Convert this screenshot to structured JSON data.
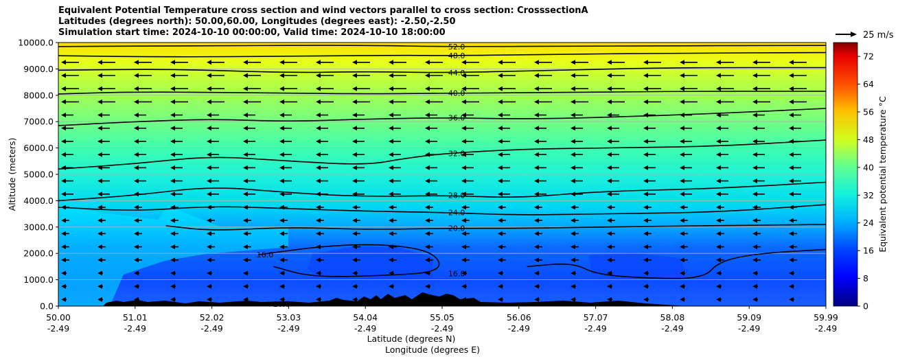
{
  "title_lines": [
    "Equivalent Potential Temperature cross section and wind vectors parallel to cross section: CrosssectionA",
    "Latitudes (degrees north): 50.00,60.00, Longitudes (degrees east): -2.50,-2.50",
    "Simulation start time: 2024-10-10 00:00:00, Valid time: 2024-10-10 18:00:00"
  ],
  "chart_data": {
    "type": "heatmap",
    "xlabel": "Latitude (degrees N)",
    "xlabel2": "Longitude (degrees E)",
    "ylabel": "Altitude (meters)",
    "colorbar_label": "Equivalent potential temperature °C",
    "x_ticks": [
      {
        "lat": "50.00",
        "lon": "-2.49"
      },
      {
        "lat": "51.01",
        "lon": "-2.49"
      },
      {
        "lat": "52.02",
        "lon": "-2.49"
      },
      {
        "lat": "53.03",
        "lon": "-2.49"
      },
      {
        "lat": "54.04",
        "lon": "-2.49"
      },
      {
        "lat": "55.05",
        "lon": "-2.49"
      },
      {
        "lat": "56.06",
        "lon": "-2.49"
      },
      {
        "lat": "57.07",
        "lon": "-2.49"
      },
      {
        "lat": "58.08",
        "lon": "-2.49"
      },
      {
        "lat": "59.09",
        "lon": "-2.49"
      },
      {
        "lat": "59.99",
        "lon": "-2.49"
      }
    ],
    "xlim": [
      50.0,
      59.99
    ],
    "y_ticks": [
      "0.0",
      "1000.0",
      "2000.0",
      "3000.0",
      "4000.0",
      "5000.0",
      "6000.0",
      "7000.0",
      "8000.0",
      "9000.0",
      "10000.0"
    ],
    "ylim": [
      0,
      10000
    ],
    "grid": "horizontal",
    "colorbar_ticks": [
      "0",
      "8",
      "16",
      "24",
      "32",
      "40",
      "48",
      "56",
      "64",
      "72"
    ],
    "colorbar_range": [
      0,
      76
    ],
    "quiver_key": "25 m/s",
    "contours": [
      {
        "value": "52.0",
        "label": "52.0",
        "points": [
          [
            50.0,
            9850
          ],
          [
            52.0,
            9880
          ],
          [
            54.0,
            9900
          ],
          [
            55.05,
            9840
          ],
          [
            57.0,
            9870
          ],
          [
            59.99,
            9890
          ]
        ]
      },
      {
        "value": "48.0",
        "label": "48.0",
        "points": [
          [
            50.0,
            9500
          ],
          [
            51.5,
            9450
          ],
          [
            53.0,
            9480
          ],
          [
            54.5,
            9520
          ],
          [
            55.05,
            9500
          ],
          [
            56.5,
            9550
          ],
          [
            58.0,
            9600
          ],
          [
            59.99,
            9620
          ]
        ]
      },
      {
        "value": "44.0",
        "label": "44.0",
        "points": [
          [
            50.0,
            8950
          ],
          [
            51.5,
            9000
          ],
          [
            53.0,
            8850
          ],
          [
            54.0,
            8900
          ],
          [
            55.05,
            8850
          ],
          [
            56.5,
            8950
          ],
          [
            58.0,
            9050
          ],
          [
            59.99,
            9050
          ]
        ]
      },
      {
        "value": "40.0",
        "label": "40.0",
        "points": [
          [
            50.0,
            8050
          ],
          [
            51.0,
            8130
          ],
          [
            52.5,
            8100
          ],
          [
            54.0,
            8050
          ],
          [
            55.05,
            8080
          ],
          [
            56.5,
            8100
          ],
          [
            58.0,
            8150
          ],
          [
            59.99,
            8150
          ]
        ]
      },
      {
        "value": "36.0",
        "label": "36.0",
        "points": [
          [
            50.0,
            6850
          ],
          [
            51.0,
            7000
          ],
          [
            52.0,
            7100
          ],
          [
            53.0,
            7000
          ],
          [
            54.0,
            7100
          ],
          [
            55.05,
            7150
          ],
          [
            56.0,
            7100
          ],
          [
            57.0,
            7150
          ],
          [
            58.5,
            7300
          ],
          [
            59.99,
            7500
          ]
        ]
      },
      {
        "value": "32.0",
        "label": "32.0",
        "points": [
          [
            50.0,
            5200
          ],
          [
            51.0,
            5400
          ],
          [
            52.0,
            5700
          ],
          [
            53.0,
            5500
          ],
          [
            54.0,
            5350
          ],
          [
            54.5,
            5600
          ],
          [
            55.05,
            5800
          ],
          [
            56.0,
            5950
          ],
          [
            57.0,
            6000
          ],
          [
            58.5,
            6050
          ],
          [
            59.99,
            6300
          ]
        ]
      },
      {
        "value": "28.0",
        "label": "28.0",
        "points": [
          [
            50.0,
            4000
          ],
          [
            51.0,
            4200
          ],
          [
            52.0,
            4550
          ],
          [
            53.0,
            4300
          ],
          [
            54.0,
            4150
          ],
          [
            55.05,
            4200
          ],
          [
            56.0,
            4100
          ],
          [
            57.0,
            4350
          ],
          [
            58.5,
            4450
          ],
          [
            59.99,
            4700
          ]
        ]
      },
      {
        "value": "24.0",
        "label": "24.0",
        "points": [
          [
            50.0,
            3750
          ],
          [
            51.0,
            3600
          ],
          [
            52.0,
            3800
          ],
          [
            53.0,
            3700
          ],
          [
            54.0,
            3600
          ],
          [
            55.05,
            3550
          ],
          [
            56.0,
            3450
          ],
          [
            57.0,
            3500
          ],
          [
            58.5,
            3550
          ],
          [
            59.99,
            3850
          ]
        ]
      },
      {
        "value": "20.0",
        "label": "20.0",
        "points": [
          [
            51.4,
            3050
          ],
          [
            52.0,
            2850
          ],
          [
            53.0,
            3000
          ],
          [
            54.0,
            2900
          ],
          [
            55.05,
            2950
          ],
          [
            56.0,
            2950
          ],
          [
            57.0,
            3000
          ],
          [
            58.5,
            3050
          ],
          [
            59.99,
            3100
          ]
        ]
      },
      {
        "value": "16.0",
        "label": "16.0",
        "points": [
          [
            52.6,
            1950
          ],
          [
            53.5,
            2300
          ],
          [
            54.3,
            2350
          ],
          [
            54.9,
            2050
          ],
          [
            55.0,
            1300
          ],
          [
            54.2,
            1150
          ],
          [
            53.3,
            1100
          ],
          [
            52.8,
            1500
          ]
        ]
      },
      {
        "value": "16.0",
        "label": "16.0",
        "points": [
          [
            56.1,
            1500
          ],
          [
            56.7,
            1650
          ],
          [
            57.0,
            1200
          ],
          [
            57.7,
            1050
          ],
          [
            58.4,
            1050
          ],
          [
            58.6,
            1700
          ],
          [
            59.1,
            2000
          ],
          [
            59.99,
            2150
          ]
        ]
      }
    ],
    "terrain_label": "16.0"
  }
}
